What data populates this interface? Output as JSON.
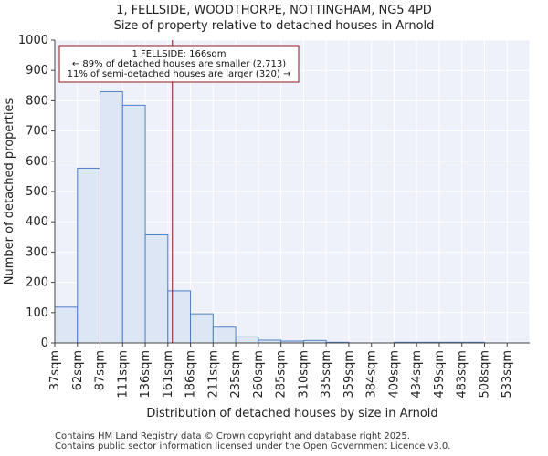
{
  "chart_data": {
    "type": "bar",
    "title_line1": "1, FELLSIDE, WOODTHORPE, NOTTINGHAM, NG5 4PD",
    "title_line2": "Size of property relative to detached houses in Arnold",
    "xlabel": "Distribution of detached houses by size in Arnold",
    "ylabel": "Number of detached properties",
    "categories": [
      "37sqm",
      "62sqm",
      "87sqm",
      "111sqm",
      "136sqm",
      "161sqm",
      "186sqm",
      "211sqm",
      "235sqm",
      "260sqm",
      "285sqm",
      "310sqm",
      "335sqm",
      "359sqm",
      "384sqm",
      "409sqm",
      "434sqm",
      "459sqm",
      "483sqm",
      "508sqm",
      "533sqm"
    ],
    "values": [
      118,
      577,
      830,
      785,
      357,
      172,
      96,
      52,
      20,
      9,
      6,
      8,
      2,
      0,
      0,
      2,
      2,
      2,
      2,
      0,
      0
    ],
    "ylim": [
      0,
      1000
    ],
    "yticks": [
      0,
      100,
      200,
      300,
      400,
      500,
      600,
      700,
      800,
      900,
      1000
    ],
    "grid": true,
    "bar_color": "#dce6f5",
    "bar_edge_color": "#4f7fc4",
    "marker": {
      "value_sqm": 166,
      "bin_position": 5.2,
      "color": "#8b1a1a",
      "label_line1": "1 FELLSIDE: 166sqm",
      "label_line2": "← 89% of detached houses are smaller (2,713)",
      "label_line3": "11% of semi-detached houses are larger (320) →"
    }
  },
  "footer": {
    "line1": "Contains HM Land Registry data © Crown copyright and database right 2025.",
    "line2": "Contains public sector information licensed under the Open Government Licence v3.0."
  }
}
